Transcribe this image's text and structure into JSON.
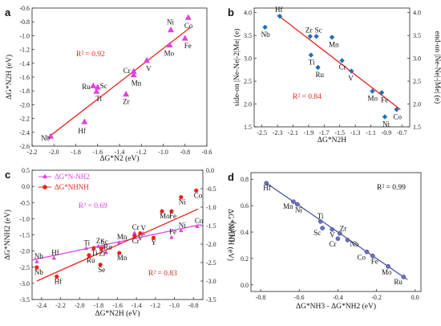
{
  "colors": {
    "magenta": "#e040e0",
    "red": "#e8231c",
    "blue": "#1f6fb4",
    "navy": "#3b4a9e",
    "frame": "#222222",
    "pink_r2": "#e040e0"
  },
  "chart_data": [
    {
      "panel": "a",
      "type": "scatter",
      "xlabel": "ΔG*N2 (eV)",
      "ylabel": "ΔG*N2H (eV)",
      "xlim": [
        -2.2,
        -0.6
      ],
      "ylim": [
        -2.6,
        -0.6
      ],
      "xticks": [
        -2.2,
        -2.0,
        -1.8,
        -1.6,
        -1.4,
        -1.2,
        -1.0,
        -0.8,
        -0.6
      ],
      "xtick_labels": [
        "-2.2",
        "-2.0",
        "-1.8",
        "-1.6",
        "-1.4",
        "-1.2",
        "-1.0",
        "-0.8",
        "-0.6"
      ],
      "yticks": [
        -2.6,
        -2.4,
        -2.2,
        -2.0,
        -1.8,
        -1.6,
        -1.4,
        -1.2,
        -1.0,
        -0.8,
        -0.6
      ],
      "ytick_labels": [
        "-2.6",
        "-2.4",
        "-2.2",
        "-2.0",
        "-1.8",
        "-1.6",
        "-1.4",
        "-1.2",
        "-1.0",
        "-0.8",
        "-0.6"
      ],
      "r2_text": "R² = 0.92",
      "fit": {
        "x": [
          -2.05,
          -0.75
        ],
        "y": [
          -2.47,
          -0.88
        ]
      },
      "points": [
        {
          "label": "Nb",
          "x": -2.03,
          "y": -2.46
        },
        {
          "label": "Hf",
          "x": -1.72,
          "y": -2.25
        },
        {
          "label": "Ru",
          "x": -1.64,
          "y": -1.73
        },
        {
          "label": "Sc",
          "x": -1.6,
          "y": -1.75
        },
        {
          "label": "Ti",
          "x": -1.61,
          "y": -1.81
        },
        {
          "label": "Zr",
          "x": -1.34,
          "y": -1.85
        },
        {
          "label": "Cr",
          "x": -1.27,
          "y": -1.52
        },
        {
          "label": "Mn",
          "x": -1.27,
          "y": -1.57
        },
        {
          "label": "V",
          "x": -1.15,
          "y": -1.36
        },
        {
          "label": "Mo",
          "x": -0.94,
          "y": -1.14
        },
        {
          "label": "Ni",
          "x": -0.93,
          "y": -0.92
        },
        {
          "label": "Fe",
          "x": -0.8,
          "y": -1.04
        },
        {
          "label": "Co",
          "x": -0.77,
          "y": -0.74
        }
      ]
    },
    {
      "panel": "b",
      "type": "scatter",
      "xlabel": "ΔG*N2H",
      "ylabel_left": "side-on |Ne-Ne|-2|Me| (e)",
      "ylabel_right": "end-on |Ne-Ne|-|Me| (e)",
      "xlim": [
        -2.6,
        -0.6
      ],
      "ylim": [
        1.5,
        4.1
      ],
      "xticks": [
        -2.5,
        -2.3,
        -2.1,
        -1.9,
        -1.7,
        -1.5,
        -1.3,
        -1.1,
        -0.9,
        -0.7
      ],
      "xtick_labels": [
        "-2.5",
        "-2.3",
        "-2.1",
        "-1.9",
        "-1.7",
        "-1.5",
        "-1.3",
        "-1.1",
        "-0.9",
        "-0.7"
      ],
      "yticks_left": [
        1.5,
        2.0,
        2.5,
        3.0,
        3.5,
        4.0
      ],
      "ytick_labels_left": [
        "1.5",
        "2.0",
        "2.5",
        "3.0",
        "3.5",
        "4.0"
      ],
      "yticks_right": [
        1.5,
        2.0,
        2.5,
        3.0,
        3.5,
        4.0
      ],
      "ytick_labels_right": [
        "1.5",
        "2.0",
        "2.5",
        "3.0",
        "3.5",
        "4.0"
      ],
      "r2_text": "R² = 0.84",
      "fit": {
        "x": [
          -2.3,
          -0.72
        ],
        "y": [
          3.95,
          1.88
        ]
      },
      "points": [
        {
          "label": "Nb",
          "x": -2.46,
          "y": 3.68,
          "color": "navy"
        },
        {
          "label": "Hf",
          "x": -2.27,
          "y": 3.92,
          "color": "navy"
        },
        {
          "label": "Zr",
          "x": -1.88,
          "y": 3.48,
          "color": "navy"
        },
        {
          "label": "Sc",
          "x": -1.8,
          "y": 3.48,
          "color": "navy"
        },
        {
          "label": "Ti",
          "x": -1.87,
          "y": 3.07,
          "color": "navy"
        },
        {
          "label": "Ru",
          "x": -1.78,
          "y": 2.8,
          "color": "navy"
        },
        {
          "label": "Mn",
          "x": -1.6,
          "y": 3.46,
          "color": "navy"
        },
        {
          "label": "Cr",
          "x": -1.47,
          "y": 2.95,
          "color": "navy"
        },
        {
          "label": "V",
          "x": -1.35,
          "y": 2.72,
          "color": "navy"
        },
        {
          "label": "Mo",
          "x": -1.08,
          "y": 2.28,
          "color": "navy"
        },
        {
          "label": "Fe",
          "x": -0.96,
          "y": 2.25,
          "color": "pink"
        },
        {
          "label": "Ni",
          "x": -0.92,
          "y": 1.72,
          "color": "pink"
        },
        {
          "label": "Co",
          "x": -0.77,
          "y": 1.88,
          "color": "navy"
        }
      ]
    },
    {
      "panel": "c",
      "type": "scatter",
      "xlabel": "ΔG*N2H (eV)",
      "ylabel_left": "ΔG*NNH2 (eV)",
      "ylabel_right": "ΔG*NHNH (eV)",
      "legend": [
        "ΔG*N-NH2",
        "ΔG*NHNH"
      ],
      "xlim": [
        -2.5,
        -0.7
      ],
      "ylim_left": [
        -3.5,
        0.5
      ],
      "ylim_right": [
        -3.5,
        0.0
      ],
      "xticks": [
        -2.4,
        -2.2,
        -2.0,
        -1.8,
        -1.6,
        -1.4,
        -1.2,
        -1.0,
        -0.8
      ],
      "xtick_labels": [
        "-2.4",
        "-2.2",
        "-2.0",
        "-1.8",
        "-1.6",
        "-1.4",
        "-1.2",
        "-1.0",
        "-0.8"
      ],
      "yticks_left": [
        -3.5,
        -3.0,
        -2.5,
        -2.0,
        -1.5,
        -1.0,
        -0.5,
        0.0,
        0.5
      ],
      "ytick_labels_left": [
        "-3.5",
        "-3.0",
        "-2.5",
        "-2.0",
        "-1.5",
        "-1.0",
        "-0.5",
        "0.0",
        "0.5"
      ],
      "yticks_right": [
        -3.5,
        -3.0,
        -2.5,
        -2.0,
        -1.5,
        -1.0,
        -0.5,
        0.0
      ],
      "ytick_labels_right": [
        "-3.5",
        "-3.0",
        "-2.5",
        "-2.0",
        "-1.5",
        "-1.0",
        "-0.5",
        "0.0"
      ],
      "r2_text_a": "R² = 0.69",
      "r2_text_b": "R² = 0.83",
      "series": [
        {
          "name": "ΔG*N-NH2",
          "color": "magenta",
          "fit": {
            "x": [
              -2.5,
              -0.72
            ],
            "y": [
              -2.28,
              -1.18
            ]
          },
          "points": [
            {
              "label": "Nb",
              "x": -2.45,
              "y": -2.33
            },
            {
              "label": "Hf",
              "x": -2.27,
              "y": -2.22
            },
            {
              "label": "Ti",
              "x": -1.93,
              "y": -1.92
            },
            {
              "label": "Zr",
              "x": -1.8,
              "y": -1.86
            },
            {
              "label": "Sc",
              "x": -1.75,
              "y": -1.88
            },
            {
              "label": "Ru",
              "x": -1.72,
              "y": -2.05
            },
            {
              "label": "Mn",
              "x": -1.58,
              "y": -1.74
            },
            {
              "label": "Cr",
              "x": -1.42,
              "y": -1.44
            },
            {
              "label": "V",
              "x": -1.33,
              "y": -1.46
            },
            {
              "label": "Fe",
              "x": -1.03,
              "y": -1.58
            },
            {
              "label": "Ni",
              "x": -0.93,
              "y": -1.37
            },
            {
              "label": "Co",
              "x": -0.76,
              "y": -1.24
            }
          ]
        },
        {
          "name": "ΔG*NHNH",
          "color": "red",
          "fit": {
            "x": [
              -2.45,
              -0.75
            ],
            "y": [
              -3.0,
              -1.05
            ]
          },
          "points": [
            {
              "label": "Nb",
              "x": -2.45,
              "y": -2.63
            },
            {
              "label": "Hf",
              "x": -2.24,
              "y": -2.88
            },
            {
              "label": "Ru",
              "x": -1.9,
              "y": -2.3
            },
            {
              "label": "Se",
              "x": -1.78,
              "y": -2.56
            },
            {
              "label": "Ti",
              "x": -1.85,
              "y": -2.11
            },
            {
              "label": "Zr",
              "x": -1.77,
              "y": -2.12
            },
            {
              "label": "Mn",
              "x": -1.58,
              "y": -2.24
            },
            {
              "label": "Cr",
              "x": -1.42,
              "y": -1.78
            },
            {
              "label": "V",
              "x": -1.36,
              "y": -1.71
            },
            {
              "label": "Y",
              "x": -1.22,
              "y": -1.83
            },
            {
              "label": "Mo",
              "x": -1.13,
              "y": -1.11
            },
            {
              "label": "Fe",
              "x": -1.03,
              "y": -1.11
            },
            {
              "label": "Ni",
              "x": -0.93,
              "y": -0.73
            },
            {
              "label": "Co",
              "x": -0.77,
              "y": -0.55
            }
          ]
        }
      ]
    },
    {
      "panel": "d",
      "type": "scatter",
      "xlabel": "ΔG*NH3 - ΔG*NH2 (eV)",
      "ylabel": "UL(V)",
      "xlim": [
        -0.85,
        0.03
      ],
      "ylim": [
        -0.05,
        0.85
      ],
      "xticks": [
        -0.8,
        -0.6,
        -0.4,
        -0.2,
        0.0
      ],
      "xtick_labels": [
        "-0.8",
        "-0.6",
        "-0.4",
        "-0.2",
        "0.0"
      ],
      "yticks": [
        0.0,
        0.2,
        0.4,
        0.6,
        0.8
      ],
      "ytick_labels": [
        "0.0",
        "0.2",
        "0.4",
        "0.6",
        "0.8"
      ],
      "r2_text": "R² = 0.99",
      "fit": {
        "x": [
          -0.78,
          -0.04
        ],
        "y": [
          0.78,
          0.04
        ]
      },
      "points": [
        {
          "label": "Hf",
          "x": -0.77,
          "y": 0.77
        },
        {
          "label": "Mn",
          "x": -0.63,
          "y": 0.63
        },
        {
          "label": "Ni",
          "x": -0.61,
          "y": 0.61
        },
        {
          "label": "Ti",
          "x": -0.49,
          "y": 0.48
        },
        {
          "label": "Sc",
          "x": -0.48,
          "y": 0.43
        },
        {
          "label": "V",
          "x": -0.43,
          "y": 0.42
        },
        {
          "label": "Zr",
          "x": -0.39,
          "y": 0.39
        },
        {
          "label": "Cr",
          "x": -0.4,
          "y": 0.35
        },
        {
          "label": "Nb",
          "x": -0.35,
          "y": 0.34
        },
        {
          "label": "Co",
          "x": -0.25,
          "y": 0.25
        },
        {
          "label": "Fe",
          "x": -0.22,
          "y": 0.22
        },
        {
          "label": "Mo",
          "x": -0.14,
          "y": 0.14
        },
        {
          "label": "Ru",
          "x": -0.06,
          "y": 0.06
        }
      ]
    }
  ]
}
